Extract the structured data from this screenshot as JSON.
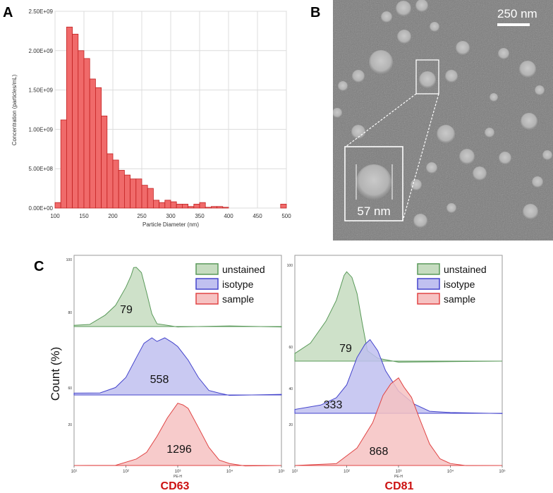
{
  "panels": {
    "a": "A",
    "b": "B",
    "c": "C"
  },
  "colors": {
    "bar_fill": "#f06a6a",
    "bar_stroke": "#c22222",
    "unstained_fill": "#c6dcc0",
    "unstained_stroke": "#5a9a5a",
    "isotype_fill": "#c0c0f0",
    "isotype_stroke": "#4444cc",
    "sample_fill": "#f6c2c2",
    "sample_stroke": "#e04444",
    "marker_text": "#cc1111"
  },
  "chart_data": [
    {
      "type": "bar",
      "id": "nta-histogram",
      "xlabel": "Particle Diameter (nm)",
      "ylabel": "Concentration (particles/mL)",
      "xlim": [
        100,
        500
      ],
      "ylim": [
        0,
        2500000000.0
      ],
      "xticks": [
        "100",
        "150",
        "200",
        "250",
        "300",
        "350",
        "400",
        "450",
        "500"
      ],
      "yticks": [
        "0.00E+00",
        "5.00E+08",
        "1.00E+09",
        "1.50E+09",
        "2.00E+09",
        "2.50E+09"
      ],
      "bin_width": 10,
      "bin_starts": [
        100,
        110,
        120,
        130,
        140,
        150,
        160,
        170,
        180,
        190,
        200,
        210,
        220,
        230,
        240,
        250,
        260,
        270,
        280,
        290,
        300,
        310,
        320,
        330,
        340,
        350,
        360,
        370,
        380,
        390,
        400,
        410,
        420,
        430,
        440,
        450,
        460,
        470,
        480,
        490
      ],
      "values": [
        70000000.0,
        1120000000.0,
        2300000000.0,
        2210000000.0,
        2000000000.0,
        1900000000.0,
        1640000000.0,
        1530000000.0,
        1170000000.0,
        690000000.0,
        610000000.0,
        480000000.0,
        420000000.0,
        370000000.0,
        370000000.0,
        290000000.0,
        250000000.0,
        100000000.0,
        70000000.0,
        100000000.0,
        80000000.0,
        50000000.0,
        50000000.0,
        20000000.0,
        50000000.0,
        70000000.0,
        10000000.0,
        20000000.0,
        20000000.0,
        10000000.0,
        0,
        0,
        0,
        0,
        0,
        0,
        0,
        0,
        0,
        50000000.0
      ]
    },
    {
      "type": "area",
      "id": "cd63-histograms",
      "title": "CD63",
      "xlabel": "PE-H",
      "ylabel": "Count (%)",
      "x_log_range": [
        1,
        5
      ],
      "xticks": [
        "10¹",
        "10²",
        "10³",
        "10⁴",
        "10⁵"
      ],
      "ytick_labels": {
        "unstained": [
          "80",
          "100"
        ],
        "isotype": [
          "60"
        ],
        "sample": [
          "20"
        ]
      },
      "series": [
        {
          "name": "unstained",
          "median": "79",
          "log_x": [
            1.0,
            1.3,
            1.6,
            1.8,
            2.0,
            2.1,
            2.15,
            2.2,
            2.3,
            2.4,
            2.5,
            2.6,
            2.8,
            3.0,
            4.0,
            5.0
          ],
          "y": [
            0.02,
            0.05,
            0.18,
            0.35,
            0.62,
            0.82,
            0.93,
            0.95,
            0.85,
            0.55,
            0.2,
            0.06,
            0.02,
            0.01,
            0.01,
            0.01
          ]
        },
        {
          "name": "isotype",
          "median": "558",
          "log_x": [
            1.0,
            1.5,
            1.8,
            2.0,
            2.2,
            2.35,
            2.5,
            2.6,
            2.75,
            2.9,
            3.0,
            3.2,
            3.4,
            3.6,
            3.8,
            4.0,
            5.0
          ],
          "y": [
            0.03,
            0.05,
            0.12,
            0.3,
            0.6,
            0.85,
            0.92,
            0.88,
            0.92,
            0.86,
            0.78,
            0.58,
            0.28,
            0.09,
            0.03,
            0.01,
            0.01
          ]
        },
        {
          "name": "sample",
          "median": "1296",
          "log_x": [
            1.0,
            1.8,
            2.2,
            2.4,
            2.6,
            2.8,
            3.0,
            3.1,
            3.2,
            3.4,
            3.6,
            3.8,
            4.0,
            4.3,
            5.0
          ],
          "y": [
            0.0,
            0.02,
            0.1,
            0.22,
            0.45,
            0.75,
            0.96,
            0.95,
            0.88,
            0.6,
            0.28,
            0.1,
            0.03,
            0.01,
            0.0
          ]
        }
      ]
    },
    {
      "type": "area",
      "id": "cd81-histograms",
      "title": "CD81",
      "xlabel": "PE-H",
      "ylabel": "Count (%)",
      "x_log_range": [
        1,
        5
      ],
      "xticks": [
        "10¹",
        "10²",
        "10³",
        "10⁴",
        "10⁵"
      ],
      "ytick_labels": {
        "unstained": [
          "60",
          "100"
        ],
        "isotype": [
          "40"
        ],
        "sample": [
          "20"
        ]
      },
      "series": [
        {
          "name": "unstained",
          "median": "79",
          "log_x": [
            1.0,
            1.3,
            1.6,
            1.8,
            1.95,
            2.0,
            2.1,
            2.2,
            2.3,
            2.4,
            2.6,
            3.0,
            5.0
          ],
          "y": [
            0.08,
            0.2,
            0.42,
            0.65,
            0.9,
            0.95,
            0.88,
            0.72,
            0.4,
            0.12,
            0.03,
            0.0,
            0.0
          ]
        },
        {
          "name": "isotype",
          "median": "333",
          "log_x": [
            1.0,
            1.5,
            1.8,
            2.0,
            2.2,
            2.35,
            2.45,
            2.6,
            2.75,
            3.0,
            3.3,
            3.6,
            4.0,
            5.0
          ],
          "y": [
            0.05,
            0.12,
            0.2,
            0.38,
            0.72,
            0.9,
            0.95,
            0.82,
            0.55,
            0.3,
            0.12,
            0.04,
            0.01,
            0.01
          ]
        },
        {
          "name": "sample",
          "median": "868",
          "log_x": [
            1.0,
            1.8,
            2.2,
            2.5,
            2.7,
            2.85,
            3.0,
            3.1,
            3.25,
            3.4,
            3.6,
            3.8,
            4.0,
            4.3,
            5.0
          ],
          "y": [
            0.0,
            0.03,
            0.18,
            0.45,
            0.72,
            0.85,
            0.9,
            0.82,
            0.7,
            0.5,
            0.22,
            0.08,
            0.02,
            0.01,
            0.0
          ]
        }
      ]
    }
  ],
  "sem_image": {
    "scale_bar_label": "250 nm",
    "inset_label": "57 nm"
  },
  "legend": {
    "unstained": "unstained",
    "isotype": "isotype",
    "sample": "sample"
  }
}
